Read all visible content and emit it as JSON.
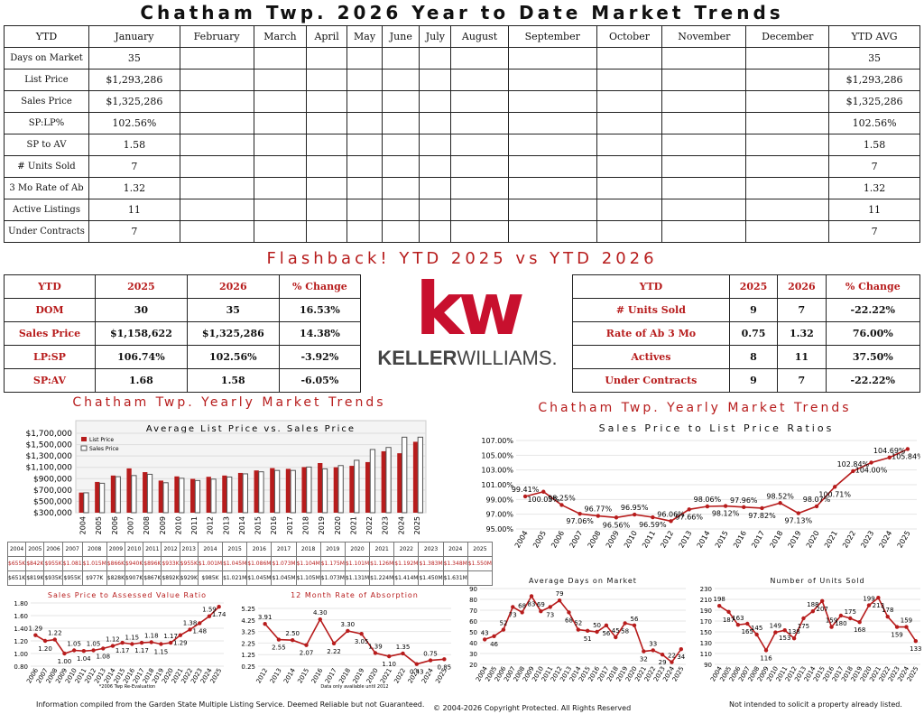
{
  "title": "Chatham Twp. 2026 Year to Date Market Trends",
  "ytd_table": {
    "headers": [
      "YTD",
      "January",
      "February",
      "March",
      "April",
      "May",
      "June",
      "July",
      "August",
      "September",
      "October",
      "November",
      "December",
      "YTD AVG"
    ],
    "rows": [
      {
        "label": "Days on Market",
        "january": "35",
        "avg": "35"
      },
      {
        "label": "List Price",
        "january": "$1,293,286",
        "avg": "$1,293,286"
      },
      {
        "label": "Sales Price",
        "january": "$1,325,286",
        "avg": "$1,325,286"
      },
      {
        "label": "SP:LP%",
        "january": "102.56%",
        "avg": "102.56%"
      },
      {
        "label": "SP to AV",
        "january": "1.58",
        "avg": "1.58"
      },
      {
        "label": "# Units Sold",
        "january": "7",
        "avg": "7"
      },
      {
        "label": "3 Mo Rate of Ab",
        "january": "1.32",
        "avg": "1.32"
      },
      {
        "label": "Active Listings",
        "january": "11",
        "avg": "11"
      },
      {
        "label": "Under Contracts",
        "january": "7",
        "avg": "7"
      }
    ]
  },
  "flashback_title": "Flashback!  YTD 2025 vs YTD 2026",
  "left_compare": {
    "headers": [
      "YTD",
      "2025",
      "2026",
      "% Change"
    ],
    "rows": [
      [
        "DOM",
        "30",
        "35",
        "16.53%"
      ],
      [
        "Sales Price",
        "$1,158,622",
        "$1,325,286",
        "14.38%"
      ],
      [
        "LP:SP",
        "106.74%",
        "102.56%",
        "-3.92%"
      ],
      [
        "SP:AV",
        "1.68",
        "1.58",
        "-6.05%"
      ]
    ]
  },
  "right_compare": {
    "headers": [
      "YTD",
      "2025",
      "2026",
      "% Change"
    ],
    "rows": [
      [
        "# Units Sold",
        "9",
        "7",
        "-22.22%"
      ],
      [
        "Rate of Ab 3 Mo",
        "0.75",
        "1.32",
        "76.00%"
      ],
      [
        "Actives",
        "8",
        "11",
        "37.50%"
      ],
      [
        "Under Contracts",
        "9",
        "7",
        "-22.22%"
      ]
    ]
  },
  "logo": {
    "mark": "kw",
    "word_bold": "KELLER",
    "word_light": "WILLIAMS.",
    "color": "#c8102e"
  },
  "section_left_title": "Chatham Twp. Yearly Market Trends",
  "section_right_title": "Chatham Twp. Yearly Market Trends",
  "price_table": {
    "years": [
      "2004",
      "2005",
      "2006",
      "2007",
      "2008",
      "2009",
      "2010",
      "2011",
      "2012",
      "2013",
      "2014",
      "2015",
      "2016",
      "2017",
      "2018",
      "2019",
      "2020",
      "2021",
      "2022",
      "2023",
      "2024",
      "2025"
    ],
    "list": [
      "$655K",
      "$842K",
      "$955K",
      "$1.081",
      "$1.015M",
      "$866K",
      "$940K",
      "$896K",
      "$933K",
      "$955K",
      "$1.001M",
      "$1.045M",
      "$1.086M",
      "$1.073M",
      "$1.104M",
      "$1.175M",
      "$1.101M",
      "$1.126M",
      "$1.192M",
      "$1.383M",
      "$1.348M",
      "$1.550M"
    ],
    "sales": [
      "$651K",
      "$819K",
      "$935K",
      "$955K",
      "$977K",
      "$828K",
      "$907K",
      "$867K",
      "$892K",
      "$929K",
      "$985K",
      "$1.021M",
      "$1.045M",
      "$1.045M",
      "$1.105M",
      "$1.073M",
      "$1.131M",
      "$1.224M",
      "$1.414M",
      "$1.450M",
      "$1.631M",
      ""
    ]
  },
  "chart_data": [
    {
      "type": "bar",
      "title": "Average List Price vs. Sales Price",
      "categories": [
        "2004",
        "2005",
        "2006",
        "2007",
        "2008",
        "2009",
        "2010",
        "2011",
        "2012",
        "2013",
        "2014",
        "2015",
        "2016",
        "2017",
        "2018",
        "2019",
        "2020",
        "2021",
        "2022",
        "2023",
        "2024",
        "2025"
      ],
      "series": [
        {
          "name": "List Price",
          "values": [
            655000,
            842000,
            955000,
            1081000,
            1015000,
            866000,
            940000,
            896000,
            933000,
            955000,
            1001000,
            1045000,
            1086000,
            1073000,
            1104000,
            1175000,
            1101000,
            1126000,
            1192000,
            1383000,
            1348000,
            1550000
          ]
        },
        {
          "name": "Sales Price",
          "values": [
            651000,
            819000,
            935000,
            955000,
            977000,
            828000,
            907000,
            867000,
            892000,
            929000,
            985000,
            1021000,
            1045000,
            1045000,
            1105000,
            1073000,
            1131000,
            1224000,
            1414000,
            1450000,
            1631000,
            1631000
          ]
        }
      ],
      "yticks": [
        "$300,000",
        "$500,000",
        "$700,000",
        "$900,000",
        "$1,100,000",
        "$1,300,000",
        "$1,500,000",
        "$1,700,000"
      ],
      "ylim": [
        300000,
        1700000
      ],
      "colors": {
        "list": "#b71c1c",
        "sales": "#9e9e9e"
      }
    },
    {
      "type": "line",
      "title": "Sales Price to List Price Ratios",
      "categories": [
        "2004",
        "2005",
        "2006",
        "2007",
        "2008",
        "2009",
        "2010",
        "2011",
        "2012",
        "2013",
        "2014",
        "2015",
        "2016",
        "2017",
        "2018",
        "2019",
        "2020",
        "2021",
        "2022",
        "2023",
        "2024",
        "2025"
      ],
      "values": [
        99.41,
        100.05,
        98.25,
        97.06,
        96.77,
        96.56,
        96.95,
        96.59,
        96.06,
        97.66,
        98.06,
        98.12,
        97.96,
        97.82,
        98.52,
        97.13,
        98.07,
        100.71,
        102.84,
        104.0,
        104.69,
        105.84
      ],
      "labels": [
        "99.41%",
        "100.05%",
        "98.25%",
        "97.06%",
        "96.77%",
        "96.56%",
        "96.95%",
        "96.59%",
        "96.06%",
        "97.66%",
        "98.06%",
        "98.12%",
        "97.96%",
        "97.82%",
        "98.52%",
        "97.13%",
        "98.07%",
        "100.71%",
        "102.84%",
        "104.00%",
        "104.69%",
        "105.84%"
      ],
      "yticks": [
        "95.00%",
        "97.00%",
        "99.00%",
        "101.00%",
        "103.00%",
        "105.00%",
        "107.00%"
      ],
      "ylim": [
        95,
        107
      ]
    },
    {
      "type": "line",
      "title": "Sales Price to Assessed Value Ratio",
      "categories": [
        "2006",
        "2007",
        "2008",
        "2009",
        "2010",
        "2011",
        "2012",
        "2013",
        "2014",
        "2015",
        "2016",
        "2017",
        "2018",
        "2019",
        "2020",
        "2021",
        "2022",
        "2023",
        "2024",
        "2025"
      ],
      "values": [
        1.29,
        1.2,
        1.22,
        1.0,
        1.05,
        1.04,
        1.05,
        1.08,
        1.12,
        1.17,
        1.15,
        1.17,
        1.18,
        1.15,
        1.17,
        1.29,
        1.38,
        1.48,
        1.59,
        1.74
      ],
      "labels": [
        "1.29",
        "1.20",
        "1.22",
        "1.00",
        "1.05",
        "1.04",
        "1.05",
        "1.08",
        "1.12",
        "1.17",
        "1.15",
        "1.17",
        "1.18",
        "1.15",
        "1.17",
        "1.29",
        "1.38",
        "1.48",
        "1.59",
        "1.74"
      ],
      "yticks": [
        "0.80",
        "1.00",
        "1.20",
        "1.40",
        "1.60",
        "1.80"
      ],
      "ylim": [
        0.8,
        1.8
      ],
      "note": "*2006 Twp Re-Evaluation"
    },
    {
      "type": "line",
      "title": "12 Month Rate of Absorption",
      "categories": [
        "2012",
        "2013",
        "2014",
        "2015",
        "2016",
        "2017",
        "2018",
        "2019",
        "2020",
        "2021",
        "2022",
        "2023",
        "2024",
        "2025"
      ],
      "values": [
        3.91,
        2.55,
        2.5,
        2.07,
        4.3,
        2.22,
        3.3,
        3.05,
        1.39,
        1.1,
        1.35,
        0.43,
        0.75,
        0.85
      ],
      "labels": [
        "3.91",
        "2.55",
        "2.50",
        "2.07",
        "4.30",
        "2.22",
        "3.30",
        "3.05",
        "1.39",
        "1.10",
        "1.35",
        "0.43",
        "0.75",
        "0.85"
      ],
      "yticks": [
        "0.25",
        "1.25",
        "2.25",
        "3.25",
        "4.25",
        "5.25"
      ],
      "ylim": [
        0.25,
        5.25
      ],
      "note": "Data only available until 2012"
    },
    {
      "type": "line",
      "title": "Average Days on Market",
      "categories": [
        "2004",
        "2005",
        "2006",
        "2007",
        "2008",
        "2009",
        "2010",
        "2011",
        "2012",
        "2013",
        "2014",
        "2015",
        "2016",
        "2017",
        "2018",
        "2019",
        "2020",
        "2021",
        "2022",
        "2023",
        "2024",
        "2025"
      ],
      "values": [
        43,
        46,
        52,
        73,
        68,
        83,
        69,
        73,
        79,
        68,
        52,
        51,
        50,
        56,
        45,
        58,
        56,
        32,
        33,
        29,
        22,
        34
      ],
      "labels": [
        "43",
        "46",
        "52",
        "73",
        "68",
        "83",
        "69",
        "73",
        "79",
        "68",
        "52",
        "51",
        "50",
        "56",
        "45",
        "58",
        "56",
        "32",
        "33",
        "29",
        "22",
        "34"
      ],
      "yticks": [
        "20",
        "30",
        "40",
        "50",
        "60",
        "70",
        "80",
        "90"
      ],
      "ylim": [
        20,
        90
      ]
    },
    {
      "type": "line",
      "title": "Number of Units Sold",
      "categories": [
        "2004",
        "2005",
        "2006",
        "2007",
        "2008",
        "2009",
        "2010",
        "2011",
        "2012",
        "2013",
        "2014",
        "2015",
        "2016",
        "2017",
        "2018",
        "2019",
        "2020",
        "2021",
        "2022",
        "2023",
        "2024",
        "2025"
      ],
      "values": [
        198,
        187,
        163,
        165,
        145,
        116,
        149,
        153,
        138,
        175,
        188,
        207,
        159,
        180,
        175,
        168,
        199,
        213,
        178,
        159,
        159,
        133
      ],
      "labels": [
        "198",
        "187",
        "163",
        "165",
        "145",
        "116",
        "149",
        "153",
        "138",
        "175",
        "188",
        "207",
        "159",
        "180",
        "175",
        "168",
        "199",
        "213",
        "178",
        "159",
        "159",
        "133"
      ],
      "yticks": [
        "90",
        "110",
        "130",
        "150",
        "170",
        "190",
        "210",
        "230"
      ],
      "ylim": [
        90,
        230
      ]
    }
  ],
  "footer": {
    "left": "Information compiled from the Garden State Multiple Listing Service.  Deemed Reliable but not Guaranteed.",
    "center": "© 2004-2026 Copyright Protected.  All Rights Reserved",
    "right": "Not intended to solicit a property already listed."
  }
}
